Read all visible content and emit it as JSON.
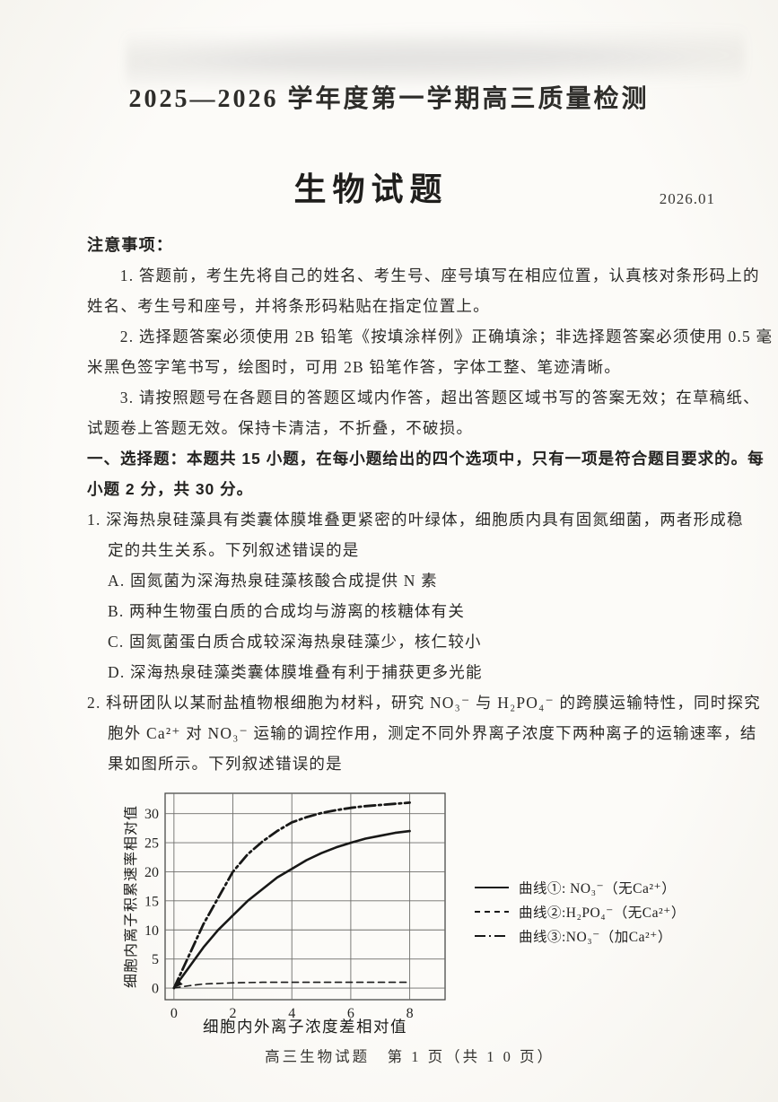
{
  "header": {
    "session_title": "2025—2026 学年度第一学期高三质量检测",
    "subject_title": "生物试题",
    "date": "2026.01"
  },
  "notice": {
    "title": "注意事项：",
    "lines": [
      "1. 答题前，考生先将自己的姓名、考生号、座号填写在相应位置，认真核对条形码上的",
      "姓名、考生号和座号，并将条形码粘贴在指定位置上。",
      "2. 选择题答案必须使用 2B 铅笔《按填涂样例》正确填涂；非选择题答案必须使用 0.5 毫",
      "米黑色签字笔书写，绘图时，可用 2B 铅笔作答，字体工整、笔迹清晰。",
      "3. 请按照题号在各题目的答题区域内作答，超出答题区域书写的答案无效；在草稿纸、",
      "试题卷上答题无效。保持卡清洁，不折叠，不破损。"
    ]
  },
  "section1": {
    "lines": [
      "一、选择题：本题共 15 小题，在每小题给出的四个选项中，只有一项是符合题目要求的。每",
      "小题 2 分，共 30 分。"
    ]
  },
  "q1": {
    "lines": [
      "1. 深海热泉硅藻具有类囊体膜堆叠更紧密的叶绿体，细胞质内具有固氮细菌，两者形成稳",
      "定的共生关系。下列叙述错误的是"
    ],
    "options": [
      "A. 固氮菌为深海热泉硅藻核酸合成提供 N 素",
      "B. 两种生物蛋白质的合成均与游离的核糖体有关",
      "C. 固氮菌蛋白质合成较深海热泉硅藻少，核仁较小",
      "D. 深海热泉硅藻类囊体膜堆叠有利于捕获更多光能"
    ]
  },
  "q2": {
    "lines": [
      "2. 科研团队以某耐盐植物根细胞为材料，研究 NO₃⁻ 与 H₂PO₄⁻ 的跨膜运输特性，同时探究",
      "胞外 Ca²⁺ 对 NO₃⁻ 运输的调控作用，测定不同外界离子浓度下两种离子的运输速率，结",
      "果如图所示。下列叙述错误的是"
    ]
  },
  "chart_data": {
    "type": "line",
    "title": "",
    "xlabel": "细胞内外离子浓度差相对值",
    "ylabel": "细胞内离子积累速率相对值",
    "x_ticks": [
      0,
      2,
      4,
      6,
      8
    ],
    "y_ticks": [
      0,
      5,
      10,
      15,
      20,
      25,
      30
    ],
    "xlim": [
      -0.3,
      9.2
    ],
    "ylim": [
      -2,
      33.5
    ],
    "grid": true,
    "legend_position": "right",
    "series": [
      {
        "name": "曲线①: NO₃⁻（无Ca²⁺）",
        "style": "solid",
        "x": [
          0,
          0.5,
          1,
          1.5,
          2,
          2.5,
          3,
          3.5,
          4,
          4.5,
          5,
          5.5,
          6,
          6.5,
          7,
          7.5,
          8
        ],
        "y": [
          0,
          3.5,
          7,
          10,
          12.5,
          15,
          17,
          19,
          20.5,
          22,
          23.2,
          24.2,
          25,
          25.7,
          26.2,
          26.7,
          27
        ]
      },
      {
        "name": "曲线②:H₂PO₄⁻（无Ca²⁺）",
        "style": "dashed",
        "x": [
          0,
          0.5,
          1,
          2,
          3,
          4,
          5,
          6,
          7,
          8
        ],
        "y": [
          0,
          0.4,
          0.7,
          0.9,
          1,
          1,
          1,
          1,
          1,
          1
        ]
      },
      {
        "name": "曲线③:NO₃⁻（加Ca²⁺）",
        "style": "dashdot",
        "x": [
          0,
          0.5,
          1,
          1.5,
          2,
          2.5,
          3,
          3.5,
          4,
          4.5,
          5,
          5.5,
          6,
          6.5,
          7,
          7.5,
          8
        ],
        "y": [
          0,
          5.5,
          11,
          15.5,
          20,
          23,
          25.2,
          27,
          28.5,
          29.4,
          30.1,
          30.6,
          31,
          31.3,
          31.5,
          31.7,
          31.9
        ]
      }
    ]
  },
  "footer": "高三生物试题　第 1 页（共 1 0 页）"
}
